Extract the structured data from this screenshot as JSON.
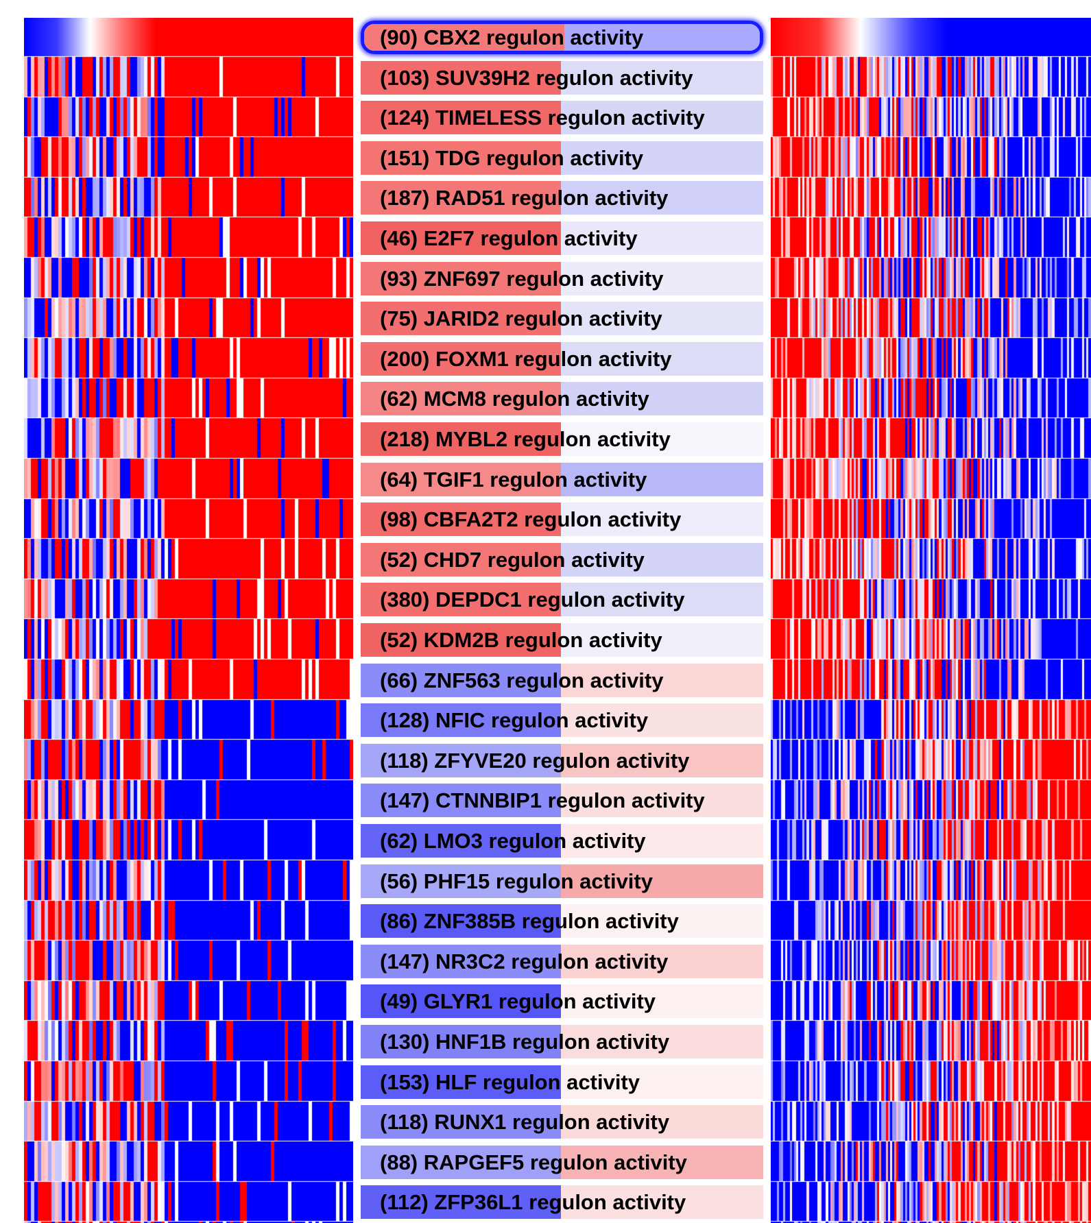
{
  "regulons": [
    {
      "count": "(90)",
      "gene": "CBX2",
      "suffix": "regulon activity",
      "group": "top",
      "left_color": "#f47a7a",
      "right_color": "#a9a9ff",
      "selected": true
    },
    {
      "count": "(103)",
      "gene": "SUV39H2",
      "suffix": "regulon activity",
      "group": "top",
      "left_color": "#f26a6a",
      "right_color": "#dcdcf7"
    },
    {
      "count": "(124)",
      "gene": "TIMELESS",
      "suffix": "regulon activity",
      "group": "top",
      "left_color": "#f26767",
      "right_color": "#d6d6f7"
    },
    {
      "count": "(151)",
      "gene": "TDG",
      "suffix": "regulon activity",
      "group": "top",
      "left_color": "#f47474",
      "right_color": "#d4d4f8"
    },
    {
      "count": "(187)",
      "gene": "RAD51",
      "suffix": "regulon activity",
      "group": "top",
      "left_color": "#f47777",
      "right_color": "#cfcff8"
    },
    {
      "count": "(46)",
      "gene": "E2F7",
      "suffix": "regulon activity",
      "group": "top",
      "left_color": "#f06262",
      "right_color": "#e8e8fa"
    },
    {
      "count": "(93)",
      "gene": "ZNF697",
      "suffix": "regulon activity",
      "group": "top",
      "left_color": "#f47777",
      "right_color": "#ebebfa"
    },
    {
      "count": "(75)",
      "gene": "JARID2",
      "suffix": "regulon activity",
      "group": "top",
      "left_color": "#f36f6f",
      "right_color": "#e4e4f9"
    },
    {
      "count": "(200)",
      "gene": "FOXM1",
      "suffix": "regulon activity",
      "group": "top",
      "left_color": "#f36f6f",
      "right_color": "#dcdcf7"
    },
    {
      "count": "(62)",
      "gene": "MCM8",
      "suffix": "regulon activity",
      "group": "top",
      "left_color": "#f58585",
      "right_color": "#d2d2f8"
    },
    {
      "count": "(218)",
      "gene": "MYBL2",
      "suffix": "regulon activity",
      "group": "top",
      "left_color": "#f06363",
      "right_color": "#f5f5fb"
    },
    {
      "count": "(64)",
      "gene": "TGIF1",
      "suffix": "regulon activity",
      "group": "top",
      "left_color": "#f48a8a",
      "right_color": "#b8b8f8"
    },
    {
      "count": "(98)",
      "gene": "CBFA2T2",
      "suffix": "regulon activity",
      "group": "top",
      "left_color": "#f26a6a",
      "right_color": "#ececfa"
    },
    {
      "count": "(52)",
      "gene": "CHD7",
      "suffix": "regulon activity",
      "group": "top",
      "left_color": "#f47777",
      "right_color": "#d4d4f8"
    },
    {
      "count": "(380)",
      "gene": "DEPDC1",
      "suffix": "regulon activity",
      "group": "top",
      "left_color": "#f36f6f",
      "right_color": "#dcdcf7"
    },
    {
      "count": "(52)",
      "gene": "KDM2B",
      "suffix": "regulon activity",
      "group": "top",
      "left_color": "#f06363",
      "right_color": "#f0f0fb"
    },
    {
      "count": "(66)",
      "gene": "ZNF563",
      "suffix": "regulon activity",
      "group": "bottom",
      "left_color": "#8c8cf8",
      "right_color": "#fbd6d6"
    },
    {
      "count": "(128)",
      "gene": "NFIC",
      "suffix": "regulon activity",
      "group": "bottom",
      "left_color": "#7a7af8",
      "right_color": "#fbe2e2"
    },
    {
      "count": "(118)",
      "gene": "ZFYVE20",
      "suffix": "regulon activity",
      "group": "bottom",
      "left_color": "#a6a6f8",
      "right_color": "#f9c4c4"
    },
    {
      "count": "(147)",
      "gene": "CTNNBIP1",
      "suffix": "regulon activity",
      "group": "bottom",
      "left_color": "#8a8af8",
      "right_color": "#fbdede"
    },
    {
      "count": "(62)",
      "gene": "LMO3",
      "suffix": "regulon activity",
      "group": "bottom",
      "left_color": "#6464f6",
      "right_color": "#fce8e8"
    },
    {
      "count": "(56)",
      "gene": "PHF15",
      "suffix": "regulon activity",
      "group": "bottom",
      "left_color": "#a8a8f8",
      "right_color": "#f7a9a9"
    },
    {
      "count": "(86)",
      "gene": "ZNF385B",
      "suffix": "regulon activity",
      "group": "bottom",
      "left_color": "#5a5af6",
      "right_color": "#fdf2f2"
    },
    {
      "count": "(147)",
      "gene": "NR3C2",
      "suffix": "regulon activity",
      "group": "bottom",
      "left_color": "#8c8cf8",
      "right_color": "#fbd0d0"
    },
    {
      "count": "(49)",
      "gene": "GLYR1",
      "suffix": "regulon activity",
      "group": "bottom",
      "left_color": "#5656f6",
      "right_color": "#fdf0f0"
    },
    {
      "count": "(130)",
      "gene": "HNF1B",
      "suffix": "regulon activity",
      "group": "bottom",
      "left_color": "#8282f8",
      "right_color": "#fbdcdc"
    },
    {
      "count": "(153)",
      "gene": "HLF",
      "suffix": "regulon activity",
      "group": "bottom",
      "left_color": "#5c5cf6",
      "right_color": "#fdf0f0"
    },
    {
      "count": "(118)",
      "gene": "RUNX1",
      "suffix": "regulon activity",
      "group": "bottom",
      "left_color": "#8a8af8",
      "right_color": "#fbdada"
    },
    {
      "count": "(88)",
      "gene": "RAPGEF5",
      "suffix": "regulon activity",
      "group": "bottom",
      "left_color": "#a0a0f8",
      "right_color": "#f8b4b4"
    },
    {
      "count": "(112)",
      "gene": "ZFP36L1",
      "suffix": "regulon activity",
      "group": "bottom",
      "left_color": "#6060f6",
      "right_color": "#fce0e0"
    }
  ],
  "colors": {
    "high": "#ff0000",
    "low": "#0000ff",
    "mid": "#ffffff",
    "selection_border": "#1a1aff"
  }
}
